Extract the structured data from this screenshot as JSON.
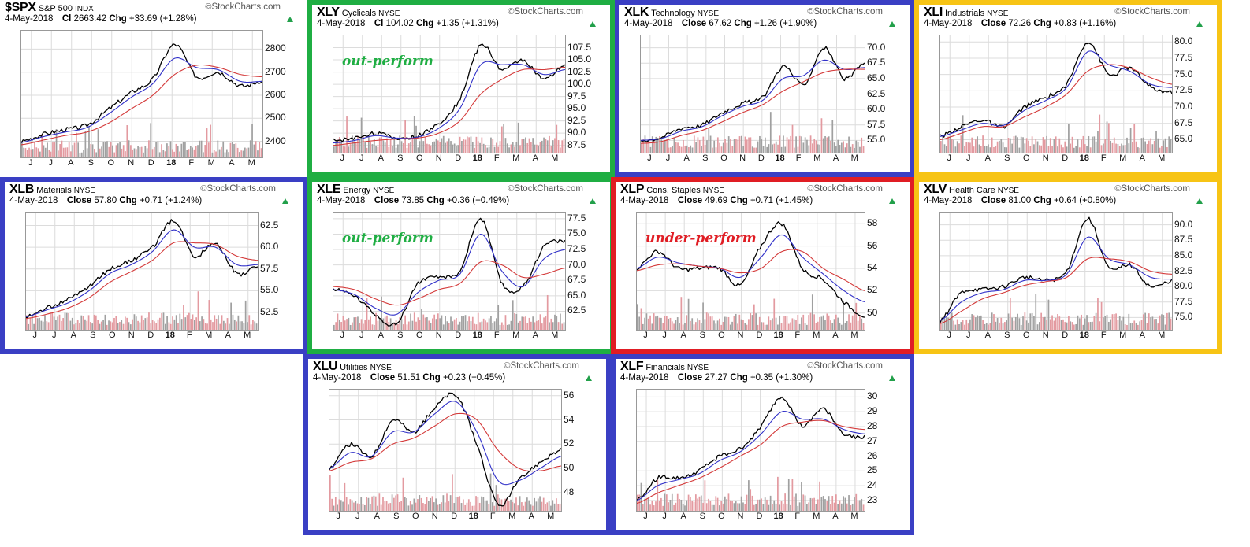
{
  "source": "StockCharts.com",
  "months": [
    "J",
    "J",
    "A",
    "S",
    "O",
    "N",
    "D",
    "18",
    "F",
    "M",
    "A",
    "M"
  ],
  "colors": {
    "green": "#1fae43",
    "blue": "#3a3fc4",
    "red": "#e01d24",
    "yellow": "#f7c415",
    "price": "#000000",
    "ma_short": "#3030c8",
    "ma_long": "#d43a3a",
    "vol_gray": "#a0a0a0",
    "vol_red": "#e39aa0"
  },
  "chart_data": [
    {
      "type": "line",
      "symbol": "$SPX",
      "name": "S&P 500",
      "exchange": "INDX",
      "date": "4-May-2018",
      "close_label": "Cl",
      "close": "2663.42",
      "chg": "+33.69 (+1.28%)",
      "yticks": [
        "2800",
        "2700",
        "2600",
        "2500",
        "2400"
      ],
      "ylim": [
        2330,
        2880
      ],
      "frame": "none",
      "note": "",
      "note_color": "",
      "x": [
        "Jun-2017",
        "Jul-2017",
        "Aug-2017",
        "Sep-2017",
        "Oct-2017",
        "Nov-2017",
        "Dec-2017",
        "Jan-2018",
        "Feb-2018",
        "Mar-2018",
        "Apr-2018",
        "May-2018"
      ],
      "series": [
        {
          "values": [
            2400,
            2430,
            2450,
            2470,
            2540,
            2610,
            2670,
            2820,
            2680,
            2700,
            2640,
            2663
          ]
        },
        {
          "values": [
            2395,
            2420,
            2440,
            2460,
            2520,
            2590,
            2650,
            2760,
            2720,
            2710,
            2660,
            2660
          ]
        },
        {
          "values": [
            2385,
            2405,
            2425,
            2440,
            2480,
            2540,
            2600,
            2690,
            2730,
            2720,
            2690,
            2680
          ]
        }
      ]
    },
    {
      "type": "line",
      "symbol": "XLY",
      "name": "Cyclicals",
      "exchange": "NYSE",
      "date": "4-May-2018",
      "close_label": "Cl",
      "close": "104.02",
      "chg": "+1.35 (+1.31%)",
      "yticks": [
        "107.5",
        "105.0",
        "102.5",
        "100.0",
        "97.5",
        "95.0",
        "92.5",
        "90.0",
        "87.5"
      ],
      "ylim": [
        86,
        110
      ],
      "frame": "green",
      "note": "out-perform",
      "note_color": "green",
      "x": [
        "Jun-2017",
        "Jul-2017",
        "Aug-2017",
        "Sep-2017",
        "Oct-2017",
        "Nov-2017",
        "Dec-2017",
        "Jan-2018",
        "Feb-2018",
        "Mar-2018",
        "Apr-2018",
        "May-2018"
      ],
      "series": [
        {
          "values": [
            88.5,
            89,
            90,
            89,
            89.5,
            92,
            97,
            108,
            103,
            105,
            101,
            104
          ]
        },
        {
          "values": [
            88,
            88.5,
            89.5,
            89,
            89.2,
            91,
            95,
            104,
            104,
            104,
            102,
            103
          ]
        },
        {
          "values": [
            87.5,
            88,
            88.5,
            88.8,
            89,
            90,
            92.5,
            98,
            101,
            103,
            103,
            103.5
          ]
        }
      ]
    },
    {
      "type": "line",
      "symbol": "XLK",
      "name": "Technology",
      "exchange": "NYSE",
      "date": "4-May-2018",
      "close_label": "Close",
      "close": "67.62",
      "chg": "+1.26 (+1.90%)",
      "yticks": [
        "70.0",
        "67.5",
        "65.0",
        "62.5",
        "60.0",
        "57.5",
        "55.0"
      ],
      "ylim": [
        53,
        72
      ],
      "frame": "blue",
      "note": "",
      "note_color": "",
      "x": [
        "Jun-2017",
        "Jul-2017",
        "Aug-2017",
        "Sep-2017",
        "Oct-2017",
        "Nov-2017",
        "Dec-2017",
        "Jan-2018",
        "Feb-2018",
        "Mar-2018",
        "Apr-2018",
        "May-2018"
      ],
      "series": [
        {
          "values": [
            55,
            55.5,
            57,
            57.5,
            59.5,
            61,
            62,
            67,
            64,
            70,
            65,
            67.6
          ]
        },
        {
          "values": [
            55,
            55.3,
            56.5,
            57.2,
            59,
            60.5,
            61.5,
            65,
            65.5,
            68,
            66.5,
            66.8
          ]
        },
        {
          "values": [
            54.5,
            54.8,
            55.8,
            56.6,
            58,
            59.5,
            60.8,
            63,
            64.5,
            66,
            66.5,
            66.5
          ]
        }
      ]
    },
    {
      "type": "line",
      "symbol": "XLI",
      "name": "Industrials",
      "exchange": "NYSE",
      "date": "4-May-2018",
      "close_label": "Close",
      "close": "72.26",
      "chg": "+0.83 (+1.16%)",
      "yticks": [
        "80.0",
        "77.5",
        "75.0",
        "72.5",
        "70.0",
        "67.5",
        "65.0"
      ],
      "ylim": [
        63,
        81
      ],
      "frame": "yellow",
      "note": "",
      "note_color": "",
      "x": [
        "Jun-2017",
        "Jul-2017",
        "Aug-2017",
        "Sep-2017",
        "Oct-2017",
        "Nov-2017",
        "Dec-2017",
        "Jan-2018",
        "Feb-2018",
        "Mar-2018",
        "Apr-2018",
        "May-2018"
      ],
      "series": [
        {
          "values": [
            65.5,
            67,
            68,
            67,
            70,
            71.5,
            73.5,
            80,
            75,
            76,
            73,
            72.3
          ]
        },
        {
          "values": [
            65.5,
            66.5,
            67.5,
            67.2,
            69.5,
            71,
            73,
            78.5,
            76.5,
            75.5,
            73.5,
            73
          ]
        },
        {
          "values": [
            65,
            66,
            67,
            67,
            68.5,
            70,
            72,
            75.5,
            76.5,
            76,
            74.5,
            73.5
          ]
        }
      ]
    },
    {
      "type": "line",
      "symbol": "XLB",
      "name": "Materials",
      "exchange": "NYSE",
      "date": "4-May-2018",
      "close_label": "Close",
      "close": "57.80",
      "chg": "+0.71 (+1.24%)",
      "yticks": [
        "62.5",
        "60.0",
        "57.5",
        "55.0",
        "52.5"
      ],
      "ylim": [
        50.5,
        64
      ],
      "frame": "blue",
      "note": "",
      "note_color": "",
      "x": [
        "Jun-2017",
        "Jul-2017",
        "Aug-2017",
        "Sep-2017",
        "Oct-2017",
        "Nov-2017",
        "Dec-2017",
        "Jan-2018",
        "Feb-2018",
        "Mar-2018",
        "Apr-2018",
        "May-2018"
      ],
      "series": [
        {
          "values": [
            52,
            53,
            54,
            55.5,
            57.5,
            58.5,
            60,
            63,
            59,
            60.5,
            57,
            57.8
          ]
        },
        {
          "values": [
            52,
            52.8,
            53.6,
            55,
            57,
            58,
            59.5,
            62,
            60,
            60,
            58,
            58
          ]
        },
        {
          "values": [
            51.8,
            52.3,
            53,
            54.2,
            56,
            57.2,
            58.5,
            60.5,
            60.5,
            60.3,
            59,
            58.5
          ]
        }
      ]
    },
    {
      "type": "line",
      "symbol": "XLE",
      "name": "Energy",
      "exchange": "NYSE",
      "date": "4-May-2018",
      "close_label": "Close",
      "close": "73.85",
      "chg": "+0.36 (+0.49%)",
      "yticks": [
        "77.5",
        "75.0",
        "72.5",
        "70.0",
        "67.5",
        "65.0",
        "62.5"
      ],
      "ylim": [
        59.5,
        78.5
      ],
      "frame": "green",
      "note": "out-perform",
      "note_color": "green",
      "x": [
        "Jun-2017",
        "Jul-2017",
        "Aug-2017",
        "Sep-2017",
        "Oct-2017",
        "Nov-2017",
        "Dec-2017",
        "Jan-2018",
        "Feb-2018",
        "Mar-2018",
        "Apr-2018",
        "May-2018"
      ],
      "series": [
        {
          "values": [
            66,
            65,
            62,
            60.5,
            67,
            68,
            69,
            77.5,
            67,
            66.5,
            73,
            73.9
          ]
        },
        {
          "values": [
            66,
            65.2,
            63,
            62,
            65.5,
            67.5,
            68.5,
            75,
            69,
            66.5,
            71,
            72.5
          ]
        },
        {
          "values": [
            66.5,
            66,
            64.5,
            63.5,
            64.5,
            66,
            67,
            70.5,
            70,
            68,
            68.5,
            69.5
          ]
        }
      ]
    },
    {
      "type": "line",
      "symbol": "XLP",
      "name": "Cons. Staples",
      "exchange": "NYSE",
      "date": "4-May-2018",
      "close_label": "Close",
      "close": "49.69",
      "chg": "+0.71 (+1.45%)",
      "yticks": [
        "58",
        "56",
        "54",
        "52",
        "50"
      ],
      "ylim": [
        48.5,
        59
      ],
      "frame": "red",
      "note": "under-perform",
      "note_color": "red",
      "x": [
        "Jun-2017",
        "Jul-2017",
        "Aug-2017",
        "Sep-2017",
        "Oct-2017",
        "Nov-2017",
        "Dec-2017",
        "Jan-2018",
        "Feb-2018",
        "Mar-2018",
        "Apr-2018",
        "May-2018"
      ],
      "series": [
        {
          "values": [
            54,
            55.5,
            54,
            54,
            54,
            52.5,
            56,
            58,
            54,
            53,
            51,
            49.7
          ]
        },
        {
          "values": [
            54,
            55,
            54.5,
            54.2,
            54,
            53.2,
            55,
            57,
            55,
            53.5,
            52,
            51
          ]
        },
        {
          "values": [
            53.8,
            54.3,
            54.4,
            54.2,
            54,
            53.6,
            54,
            55.5,
            55.5,
            54,
            53,
            52
          ]
        }
      ]
    },
    {
      "type": "line",
      "symbol": "XLV",
      "name": "Health Care",
      "exchange": "NYSE",
      "date": "4-May-2018",
      "close_label": "Close",
      "close": "81.00",
      "chg": "+0.64 (+0.80%)",
      "yticks": [
        "90.0",
        "87.5",
        "85.0",
        "82.5",
        "80.0",
        "77.5",
        "75.0"
      ],
      "ylim": [
        73,
        92
      ],
      "frame": "yellow",
      "note": "",
      "note_color": "",
      "x": [
        "Jun-2017",
        "Jul-2017",
        "Aug-2017",
        "Sep-2017",
        "Oct-2017",
        "Nov-2017",
        "Dec-2017",
        "Jan-2018",
        "Feb-2018",
        "Mar-2018",
        "Apr-2018",
        "May-2018"
      ],
      "series": [
        {
          "values": [
            74.5,
            79,
            79.5,
            80,
            81.5,
            81,
            82.5,
            91,
            83,
            83.5,
            80,
            81
          ]
        },
        {
          "values": [
            74.5,
            77.5,
            79,
            79.5,
            81,
            81,
            82,
            88,
            84.5,
            83.5,
            81.5,
            81.2
          ]
        },
        {
          "values": [
            74,
            76,
            78,
            79,
            80.2,
            80.8,
            81.5,
            84.5,
            84.5,
            84,
            82.5,
            82
          ]
        }
      ]
    },
    {
      "type": "line",
      "symbol": "XLU",
      "name": "Utilities",
      "exchange": "NYSE",
      "date": "4-May-2018",
      "close_label": "Close",
      "close": "51.51",
      "chg": "+0.23 (+0.45%)",
      "yticks": [
        "56",
        "54",
        "52",
        "50",
        "48"
      ],
      "ylim": [
        46.5,
        56.5
      ],
      "frame": "blue",
      "note": "",
      "note_color": "",
      "x": [
        "Jun-2017",
        "Jul-2017",
        "Aug-2017",
        "Sep-2017",
        "Oct-2017",
        "Nov-2017",
        "Dec-2017",
        "Jan-2018",
        "Feb-2018",
        "Mar-2018",
        "Apr-2018",
        "May-2018"
      ],
      "series": [
        {
          "values": [
            50,
            52,
            51,
            54,
            53,
            55,
            56,
            52,
            47,
            49,
            50.5,
            51.5
          ]
        },
        {
          "values": [
            50,
            51.3,
            51,
            53,
            53,
            54.5,
            55.5,
            53,
            49,
            49,
            50,
            51
          ]
        },
        {
          "values": [
            49.8,
            50.5,
            50.8,
            52,
            52.5,
            53.5,
            54.5,
            54,
            51.5,
            50,
            49.8,
            50.2
          ]
        }
      ]
    },
    {
      "type": "line",
      "symbol": "XLF",
      "name": "Financials",
      "exchange": "NYSE",
      "date": "4-May-2018",
      "close_label": "Close",
      "close": "27.27",
      "chg": "+0.35 (+1.30%)",
      "yticks": [
        "30",
        "29",
        "28",
        "27",
        "26",
        "25",
        "24",
        "23"
      ],
      "ylim": [
        22.3,
        30.5
      ],
      "frame": "blue",
      "note": "",
      "note_color": "",
      "x": [
        "Jun-2017",
        "Jul-2017",
        "Aug-2017",
        "Sep-2017",
        "Oct-2017",
        "Nov-2017",
        "Dec-2017",
        "Jan-2018",
        "Feb-2018",
        "Mar-2018",
        "Apr-2018",
        "May-2018"
      ],
      "series": [
        {
          "values": [
            23,
            24.5,
            24.5,
            25,
            26,
            26.5,
            28,
            30,
            28,
            29.2,
            27.5,
            27.3
          ]
        },
        {
          "values": [
            23,
            24,
            24.4,
            24.8,
            25.7,
            26.3,
            27.5,
            29,
            28.5,
            28.5,
            27.8,
            27.5
          ]
        },
        {
          "values": [
            22.8,
            23.5,
            24,
            24.5,
            25.2,
            26,
            26.8,
            28,
            28.3,
            28.4,
            28,
            27.8
          ]
        }
      ]
    }
  ]
}
